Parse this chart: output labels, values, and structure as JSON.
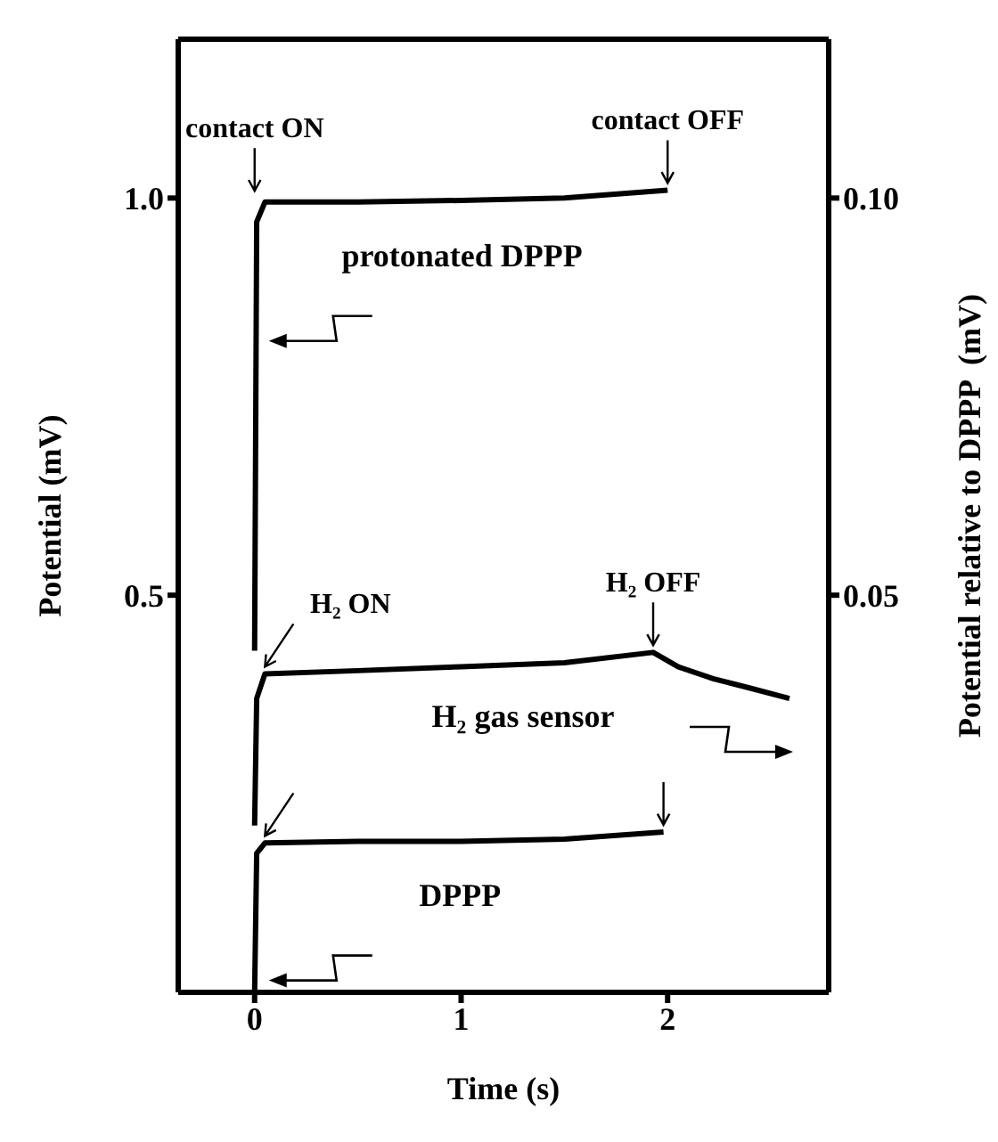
{
  "chart_data": {
    "type": "line",
    "xlabel": "Time (s)",
    "ylabel": "Potential (mV)",
    "y2label": "Potential relative to DPPP  (mV)",
    "xlim": [
      -0.37,
      2.78
    ],
    "xticks": [
      0,
      1,
      2
    ],
    "ylim": [
      0,
      1.2
    ],
    "yticks": [
      0.5,
      {
        "value": 1,
        "label": "1.0"
      }
    ],
    "y2lim": [
      0,
      0.12
    ],
    "y2ticks": [
      0.05,
      {
        "value": 0.1,
        "label": "0.10"
      }
    ],
    "marker": "none",
    "line_style": "solid",
    "series": [
      {
        "name": "protonated DPPP",
        "color": "#000000",
        "x": [
          0,
          0.01,
          0.05,
          0.5,
          1,
          1.5,
          2
        ],
        "values": [
          0.43,
          0.97,
          0.995,
          0.995,
          0.997,
          1.0,
          1.01
        ]
      },
      {
        "name": "H₂ gas sensor",
        "color": "#000000",
        "axis": "y2",
        "x": [
          0,
          0.01,
          0.05,
          0.5,
          1,
          1.5,
          1.93,
          2.05,
          2.22,
          2.4,
          2.59
        ],
        "values": [
          0.021,
          0.037,
          0.0401,
          0.0405,
          0.041,
          0.0415,
          0.0428,
          0.041,
          0.0395,
          0.0383,
          0.037
        ]
      },
      {
        "name": "DPPP",
        "color": "#000000",
        "x": [
          0,
          0.01,
          0.05,
          0.5,
          1,
          1.5,
          1.98
        ],
        "values": [
          0,
          0.175,
          0.188,
          0.19,
          0.19,
          0.193,
          0.202
        ]
      }
    ],
    "annotations": [
      {
        "text": "contact ON",
        "x": 0,
        "y": 1.0
      },
      {
        "text": "contact OFF",
        "x": 2,
        "y": 1.01
      },
      {
        "text": "H₂ ON",
        "x": 0.05,
        "y": 0.401
      },
      {
        "text": "H₂ OFF",
        "x": 1.93,
        "y": 0.428
      }
    ]
  }
}
